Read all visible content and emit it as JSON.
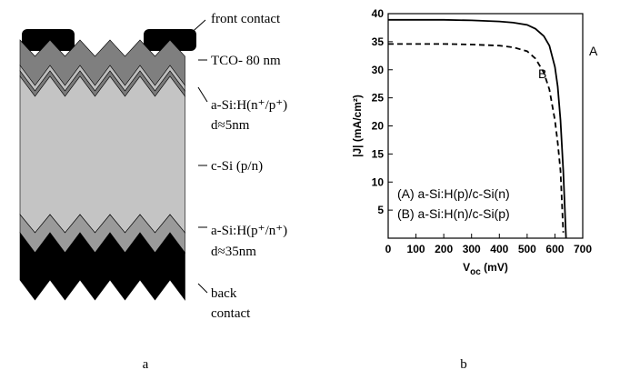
{
  "diagram": {
    "labels": [
      "front contact",
      "TCO- 80 nm",
      "a-Si:H(n⁺/p⁺)",
      "d≈5nm",
      "c-Si (p/n)",
      "a-Si:H(p⁺/n⁺)",
      "d≈35nm",
      "back",
      "contact"
    ]
  },
  "captions": [
    "a",
    "b"
  ],
  "chart_data": {
    "type": "line",
    "xlabel": [
      "V",
      "oc",
      " (mV)"
    ],
    "ylabel": "|J| (mA/cm²)",
    "x": [
      0,
      100,
      200,
      300,
      400,
      450,
      500,
      530,
      560,
      580,
      600,
      610,
      620,
      630,
      640
    ],
    "series": [
      {
        "name": "(A) a-Si:H(p)/c-Si(n)",
        "color": "#000000",
        "dash": false,
        "values": [
          38.9,
          38.9,
          38.9,
          38.8,
          38.6,
          38.4,
          38.0,
          37.3,
          36.0,
          34.3,
          30.5,
          27,
          21,
          12,
          0
        ]
      },
      {
        "name": "(B) a-Si:H(n)/c-Si(p)",
        "color": "#000000",
        "dash": true,
        "values": [
          34.6,
          34.6,
          34.6,
          34.5,
          34.3,
          34.0,
          33.3,
          32.0,
          29.5,
          26.5,
          21,
          17,
          12,
          1,
          null
        ]
      }
    ],
    "annotations": [
      "A",
      "B"
    ],
    "xlim": [
      0,
      700
    ],
    "xticks": [
      0,
      100,
      200,
      300,
      400,
      500,
      600,
      700
    ],
    "ylim": [
      0,
      40
    ],
    "yticks": [
      5,
      10,
      15,
      20,
      25,
      30,
      35,
      40
    ]
  }
}
